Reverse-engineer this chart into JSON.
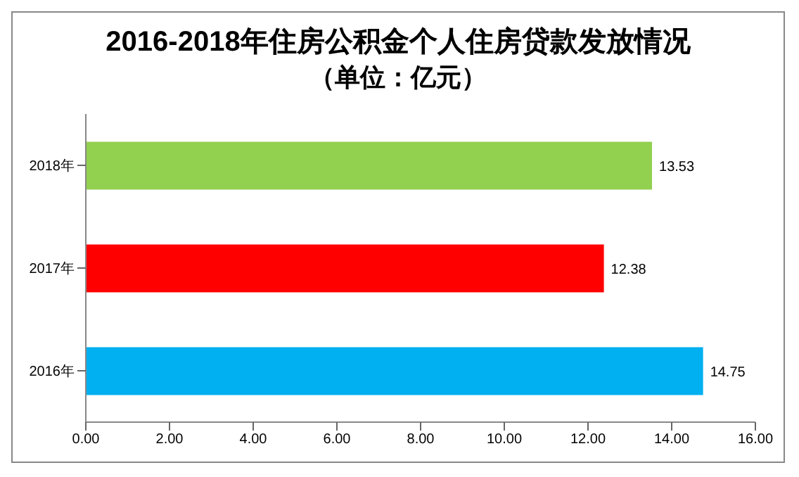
{
  "chart_data": {
    "type": "bar",
    "orientation": "horizontal",
    "title": "2016-2018年住房公积金个人住房贷款发放情况",
    "subtitle": "（单位：亿元）",
    "categories": [
      "2018年",
      "2017年",
      "2016年"
    ],
    "values": [
      13.53,
      12.38,
      14.75
    ],
    "colors": [
      "#92d050",
      "#ff0000",
      "#00b0f0"
    ],
    "xlim": [
      0,
      16
    ],
    "xticks": [
      {
        "value": 0,
        "label": "0.00"
      },
      {
        "value": 2,
        "label": "2.00"
      },
      {
        "value": 4,
        "label": "4.00"
      },
      {
        "value": 6,
        "label": "6.00"
      },
      {
        "value": 8,
        "label": "8.00"
      },
      {
        "value": 10,
        "label": "10.00"
      },
      {
        "value": 12,
        "label": "12.00"
      },
      {
        "value": 14,
        "label": "14.00"
      },
      {
        "value": 16,
        "label": "16.00"
      }
    ],
    "data_labels": true,
    "grid": false
  }
}
